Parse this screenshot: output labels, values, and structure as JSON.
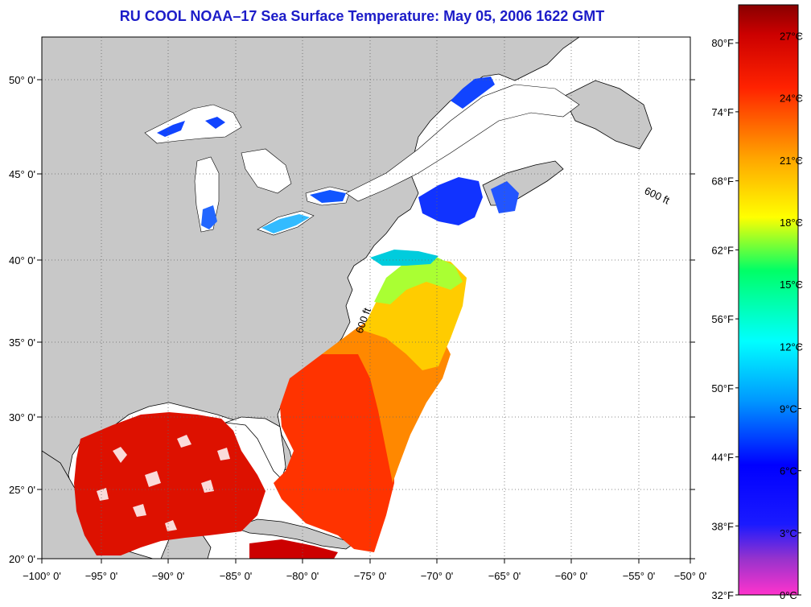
{
  "title": "RU COOL  NOAA–17  Sea Surface Temperature:  May 05, 2006 1622 GMT",
  "map": {
    "lon_labels": [
      "−100° 0'",
      "−95° 0'",
      "−90° 0'",
      "−85° 0'",
      "−80° 0'",
      "−75° 0'",
      "−70° 0'",
      "−65° 0'",
      "−60° 0'",
      "−55° 0'",
      "−50° 0'"
    ],
    "lat_labels": [
      "50° 0'",
      "45° 0'",
      "40° 0'",
      "35° 0'",
      "30° 0'",
      "25° 0'",
      "20° 0'"
    ],
    "lon_range": [
      -100,
      -50
    ],
    "lat_range": [
      20,
      52.5
    ],
    "isobath_label": "600 ft",
    "colors": {
      "land": "#c8c8c8",
      "no_data": "#ffffff",
      "coast": "#000000"
    }
  },
  "colorbar": {
    "fahrenheit_labels": [
      "80°F",
      "74°F",
      "68°F",
      "62°F",
      "56°F",
      "50°F",
      "44°F",
      "38°F",
      "32°F"
    ],
    "celsius_labels": [
      "27°C",
      "24°C",
      "21°C",
      "18°C",
      "15°C",
      "12°C",
      "9°C",
      "6°C",
      "3°C",
      "0°C"
    ],
    "fahrenheit_values": [
      80,
      74,
      68,
      62,
      56,
      50,
      44,
      38,
      32
    ],
    "celsius_values": [
      27,
      24,
      21,
      18,
      15,
      12,
      9,
      6,
      3,
      0
    ],
    "range_c": [
      0,
      28.5
    ],
    "colors": [
      "#ff33cc",
      "#9933cc",
      "#0000ff",
      "#0099ff",
      "#00ffff",
      "#00ff99",
      "#ffff00",
      "#ffa500",
      "#ff3300",
      "#dd0000",
      "#880000"
    ]
  }
}
